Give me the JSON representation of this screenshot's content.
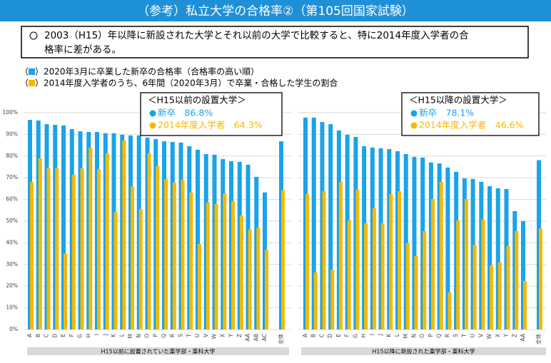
{
  "header": {
    "title": "（参考）私立大学の合格率②（第105回国家試験）"
  },
  "note": {
    "lines": [
      "2003（H15）年以降に新設された大学とそれ以前の大学で比較すると、特に2014年度入学者の合",
      "格率に差がある。"
    ]
  },
  "chart_data": [
    {
      "type": "bar",
      "xlabel": "H15以前に設置されていた薬学部・薬科大学",
      "categories": [
        "A",
        "B",
        "C",
        "D",
        "E",
        "F",
        "G",
        "H",
        "I",
        "J",
        "K",
        "L",
        "M",
        "N",
        "O",
        "P",
        "Q",
        "R",
        "S",
        "T",
        "U",
        "V",
        "W",
        "X",
        "Y",
        "Z",
        "AA",
        "AB",
        "AC",
        "全体"
      ],
      "series": [
        {
          "name": "2020年3月に卒業した新卒の合格率（合格率の高い順）",
          "color": "#1aa3e8",
          "values": [
            96.7,
            96.4,
            94.7,
            94.4,
            94.1,
            92.4,
            91.4,
            91.1,
            91.1,
            90.5,
            90.5,
            89.8,
            89.5,
            89.5,
            88.5,
            87.8,
            86.8,
            86.5,
            86.2,
            84.5,
            82.9,
            80.9,
            80.6,
            78.6,
            77.6,
            77.3,
            76.0,
            70.4,
            63.2,
            86.8
          ]
        },
        {
          "name": "2014年度入学者のうち、6年間（2020年3月）で卒業・合格した学生の割合",
          "color": "#f5b800",
          "values": [
            68.0,
            79.0,
            74.7,
            74.3,
            35.0,
            71.4,
            74.3,
            84.0,
            74.0,
            81.3,
            54.3,
            87.2,
            66.0,
            55.6,
            81.3,
            75.3,
            69.4,
            67.8,
            69.1,
            63.2,
            39.5,
            58.6,
            57.9,
            62.8,
            59.2,
            52.6,
            46.0,
            47.0,
            36.8,
            64.3
          ]
        }
      ],
      "ylim": [
        0,
        100
      ],
      "yticks": [
        {
          "value": 0,
          "label": "0%"
        },
        {
          "value": 10,
          "label": "10%"
        },
        {
          "value": 20,
          "label": "20%"
        },
        {
          "value": 30,
          "label": "30%"
        },
        {
          "value": 40,
          "label": "40%"
        },
        {
          "value": 50,
          "label": "50%"
        },
        {
          "value": 60,
          "label": "60%"
        },
        {
          "value": 70,
          "label": "70%"
        },
        {
          "value": 80,
          "label": "80%"
        },
        {
          "value": 90,
          "label": "90%"
        },
        {
          "value": 100,
          "label": "100%"
        }
      ],
      "grid": true,
      "annotation": {
        "title": "＜H15以前の設置大学＞",
        "lines": [
          "新卒　86.8%",
          "2014年度入学者　64.3%"
        ]
      }
    },
    {
      "type": "bar",
      "xlabel": "H15以降に新設された薬学部・薬科大学",
      "categories": [
        "A",
        "B",
        "C",
        "D",
        "E",
        "F",
        "G",
        "H",
        "I",
        "J",
        "K",
        "L",
        "M",
        "N",
        "O",
        "P",
        "Q",
        "R",
        "S",
        "T",
        "U",
        "V",
        "W",
        "X",
        "Y",
        "Z",
        "AA",
        "全体"
      ],
      "series": [
        {
          "color": "#1aa3e8",
          "values": [
            97.7,
            97.7,
            95.7,
            94.7,
            91.8,
            89.8,
            88.8,
            84.5,
            83.9,
            83.6,
            83.2,
            82.2,
            80.9,
            79.6,
            79.3,
            77.0,
            76.6,
            74.7,
            72.7,
            69.7,
            69.4,
            68.1,
            66.1,
            65.1,
            64.8,
            54.6,
            50.0,
            78.1
          ]
        },
        {
          "color": "#f5b800",
          "values": [
            62.5,
            26.3,
            63.8,
            27.6,
            68.1,
            50.3,
            64.5,
            49.0,
            55.9,
            49.0,
            62.5,
            63.8,
            39.8,
            33.9,
            45.4,
            60.2,
            68.1,
            17.1,
            50.3,
            60.2,
            39.1,
            50.7,
            29.6,
            30.9,
            38.5,
            45.4,
            22.4,
            46.6
          ]
        }
      ],
      "ylim": [
        0,
        100
      ],
      "yticks": [
        0,
        10,
        20,
        30,
        40,
        50,
        60,
        70,
        80,
        90,
        100
      ],
      "grid": true,
      "annotation": {
        "title": "＜H15以降の設置大学＞",
        "lines": [
          "新卒　78.1%",
          "2014年度入学者　46.6%"
        ]
      }
    }
  ]
}
